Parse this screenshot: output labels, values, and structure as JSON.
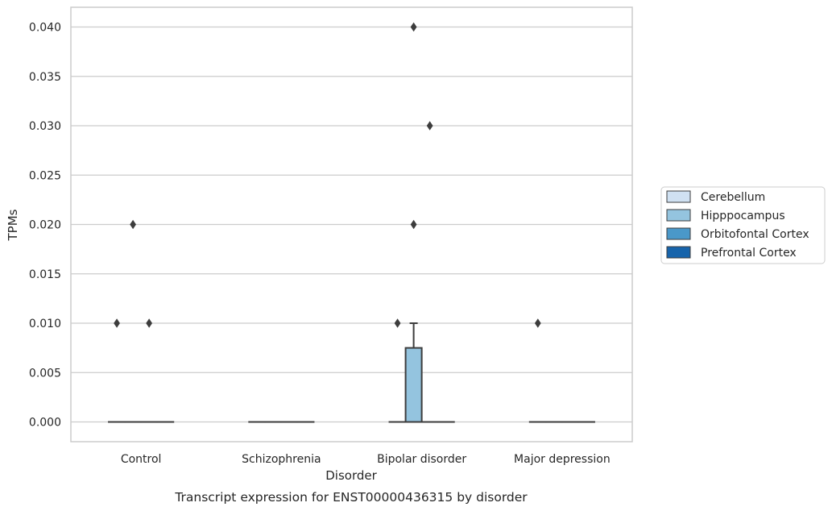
{
  "chart_data": {
    "type": "box",
    "categories": [
      "Control",
      "Schizophrenia",
      "Bipolar disorder",
      "Major depression"
    ],
    "xlabel": "Disorder",
    "ylabel": "TPMs",
    "caption": "Transcript expression for ENST00000436315 by disorder",
    "ylim": [
      -0.002,
      0.042
    ],
    "yticks": [
      "0.000",
      "0.005",
      "0.010",
      "0.015",
      "0.020",
      "0.025",
      "0.030",
      "0.035",
      "0.040"
    ],
    "grid": true,
    "legend_position": "right",
    "series": [
      {
        "name": "Cerebellum",
        "color": "#d0e1f2"
      },
      {
        "name": "Hipppocampus",
        "color": "#94c4df"
      },
      {
        "name": "Orbitofontal Cortex",
        "color": "#4a98c9"
      },
      {
        "name": "Prefrontal Cortex",
        "color": "#1764ab"
      }
    ],
    "boxes": [
      {
        "category": "Control",
        "series": "Cerebellum",
        "q1": 0,
        "median": 0,
        "q3": 0,
        "whisker_low": 0,
        "whisker_high": 0,
        "outliers": [
          0.01
        ]
      },
      {
        "category": "Control",
        "series": "Hipppocampus",
        "q1": 0,
        "median": 0,
        "q3": 0,
        "whisker_low": 0,
        "whisker_high": 0,
        "outliers": [
          0.02
        ]
      },
      {
        "category": "Control",
        "series": "Orbitofontal Cortex",
        "q1": 0,
        "median": 0,
        "q3": 0,
        "whisker_low": 0,
        "whisker_high": 0,
        "outliers": [
          0.01
        ]
      },
      {
        "category": "Control",
        "series": "Prefrontal Cortex",
        "q1": 0,
        "median": 0,
        "q3": 0,
        "whisker_low": 0,
        "whisker_high": 0,
        "outliers": []
      },
      {
        "category": "Schizophrenia",
        "series": "Cerebellum",
        "q1": 0,
        "median": 0,
        "q3": 0,
        "whisker_low": 0,
        "whisker_high": 0,
        "outliers": []
      },
      {
        "category": "Schizophrenia",
        "series": "Hipppocampus",
        "q1": 0,
        "median": 0,
        "q3": 0,
        "whisker_low": 0,
        "whisker_high": 0,
        "outliers": []
      },
      {
        "category": "Schizophrenia",
        "series": "Orbitofontal Cortex",
        "q1": 0,
        "median": 0,
        "q3": 0,
        "whisker_low": 0,
        "whisker_high": 0,
        "outliers": []
      },
      {
        "category": "Schizophrenia",
        "series": "Prefrontal Cortex",
        "q1": 0,
        "median": 0,
        "q3": 0,
        "whisker_low": 0,
        "whisker_high": 0,
        "outliers": []
      },
      {
        "category": "Bipolar disorder",
        "series": "Cerebellum",
        "q1": 0,
        "median": 0,
        "q3": 0,
        "whisker_low": 0,
        "whisker_high": 0,
        "outliers": [
          0.01
        ]
      },
      {
        "category": "Bipolar disorder",
        "series": "Hipppocampus",
        "q1": 0,
        "median": 0,
        "q3": 0.0075,
        "whisker_low": 0,
        "whisker_high": 0.01,
        "outliers": [
          0.02,
          0.04
        ]
      },
      {
        "category": "Bipolar disorder",
        "series": "Orbitofontal Cortex",
        "q1": 0,
        "median": 0,
        "q3": 0,
        "whisker_low": 0,
        "whisker_high": 0,
        "outliers": [
          0.03
        ]
      },
      {
        "category": "Bipolar disorder",
        "series": "Prefrontal Cortex",
        "q1": 0,
        "median": 0,
        "q3": 0,
        "whisker_low": 0,
        "whisker_high": 0,
        "outliers": []
      },
      {
        "category": "Major depression",
        "series": "Cerebellum",
        "q1": 0,
        "median": 0,
        "q3": 0,
        "whisker_low": 0,
        "whisker_high": 0,
        "outliers": [
          0.01
        ]
      },
      {
        "category": "Major depression",
        "series": "Hipppocampus",
        "q1": 0,
        "median": 0,
        "q3": 0,
        "whisker_low": 0,
        "whisker_high": 0,
        "outliers": []
      },
      {
        "category": "Major depression",
        "series": "Orbitofontal Cortex",
        "q1": 0,
        "median": 0,
        "q3": 0,
        "whisker_low": 0,
        "whisker_high": 0,
        "outliers": []
      },
      {
        "category": "Major depression",
        "series": "Prefrontal Cortex",
        "q1": 0,
        "median": 0,
        "q3": 0,
        "whisker_low": 0,
        "whisker_high": 0,
        "outliers": []
      }
    ]
  }
}
